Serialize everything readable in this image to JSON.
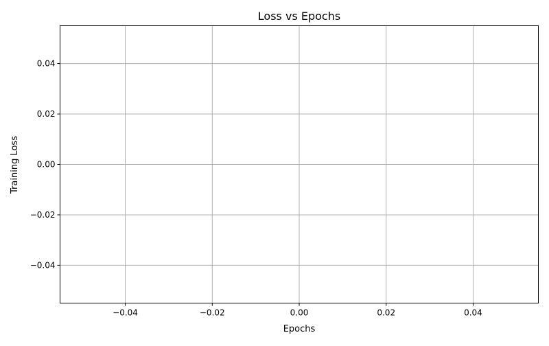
{
  "chart_data": {
    "type": "line",
    "title": "Loss vs Epochs",
    "xlabel": "Epochs",
    "ylabel": "Training Loss",
    "xlim": [
      -0.055,
      0.055
    ],
    "ylim": [
      -0.055,
      0.055
    ],
    "xticks": [
      -0.04,
      -0.02,
      0.0,
      0.02,
      0.04
    ],
    "yticks": [
      -0.04,
      -0.02,
      0.0,
      0.02,
      0.04
    ],
    "xtick_labels": [
      "−0.04",
      "−0.02",
      "0.00",
      "0.02",
      "0.04"
    ],
    "ytick_labels": [
      "−0.04",
      "−0.02",
      "0.00",
      "0.02",
      "0.04"
    ],
    "grid": true,
    "series": [
      {
        "x": [],
        "y": []
      }
    ],
    "colors": {
      "grid": "#b0b0b0",
      "axis": "#000000"
    }
  }
}
